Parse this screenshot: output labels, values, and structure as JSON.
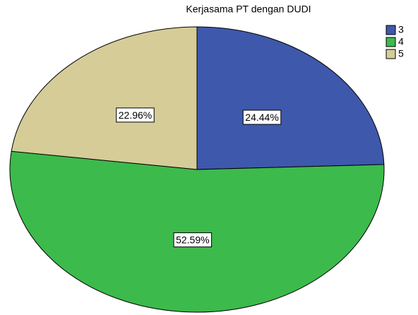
{
  "chart_data": {
    "type": "pie",
    "title": "Kerjasama PT dengan DUDI",
    "categories": [
      "3",
      "4",
      "5"
    ],
    "values": [
      24.44,
      52.59,
      22.96
    ],
    "value_labels": [
      "24.44%",
      "52.59%",
      "22.96%"
    ],
    "colors": [
      "#3e58ac",
      "#3dba4c",
      "#d5cc98"
    ],
    "legend": "top-right"
  }
}
